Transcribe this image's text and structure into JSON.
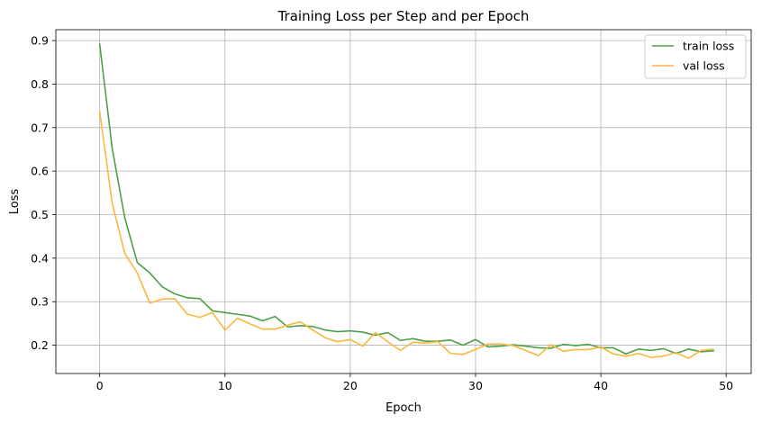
{
  "chart_data": {
    "type": "line",
    "title": "Training Loss per Step and per Epoch",
    "xlabel": "Epoch",
    "ylabel": "Loss",
    "xlim": [
      -3.5,
      52
    ],
    "ylim": [
      0.135,
      0.925
    ],
    "x_ticks": [
      0,
      10,
      20,
      30,
      40,
      50
    ],
    "y_ticks": [
      0.2,
      0.3,
      0.4,
      0.5,
      0.6,
      0.7,
      0.8,
      0.9
    ],
    "x_tick_labels": [
      "0",
      "10",
      "20",
      "30",
      "40",
      "50"
    ],
    "y_tick_labels": [
      "0.2",
      "0.3",
      "0.4",
      "0.5",
      "0.6",
      "0.7",
      "0.8",
      "0.9"
    ],
    "grid": true,
    "legend_position": "top-right",
    "x": [
      0,
      1,
      2,
      3,
      4,
      5,
      6,
      7,
      8,
      9,
      10,
      11,
      12,
      13,
      14,
      15,
      16,
      17,
      18,
      19,
      20,
      21,
      22,
      23,
      24,
      25,
      26,
      27,
      28,
      29,
      30,
      31,
      32,
      33,
      34,
      35,
      36,
      37,
      38,
      39,
      40,
      41,
      42,
      43,
      44,
      45,
      46,
      47,
      48,
      49
    ],
    "series": [
      {
        "name": "train loss",
        "color": "#4c9f48",
        "values": [
          0.892,
          0.652,
          0.493,
          0.39,
          0.366,
          0.334,
          0.318,
          0.309,
          0.307,
          0.279,
          0.275,
          0.271,
          0.267,
          0.256,
          0.266,
          0.242,
          0.245,
          0.243,
          0.235,
          0.231,
          0.233,
          0.23,
          0.223,
          0.229,
          0.211,
          0.215,
          0.209,
          0.209,
          0.212,
          0.2,
          0.213,
          0.196,
          0.198,
          0.201,
          0.198,
          0.194,
          0.193,
          0.202,
          0.199,
          0.202,
          0.194,
          0.194,
          0.18,
          0.191,
          0.188,
          0.192,
          0.181,
          0.191,
          0.185,
          0.187
        ]
      },
      {
        "name": "val loss",
        "color": "#fbb73c",
        "values": [
          0.737,
          0.526,
          0.411,
          0.366,
          0.297,
          0.306,
          0.307,
          0.271,
          0.264,
          0.275,
          0.235,
          0.262,
          0.249,
          0.237,
          0.237,
          0.246,
          0.254,
          0.235,
          0.217,
          0.208,
          0.213,
          0.198,
          0.229,
          0.208,
          0.188,
          0.207,
          0.205,
          0.208,
          0.181,
          0.179,
          0.19,
          0.203,
          0.203,
          0.199,
          0.188,
          0.176,
          0.201,
          0.186,
          0.19,
          0.19,
          0.196,
          0.18,
          0.175,
          0.181,
          0.172,
          0.175,
          0.183,
          0.17,
          0.188,
          0.191
        ]
      }
    ]
  }
}
